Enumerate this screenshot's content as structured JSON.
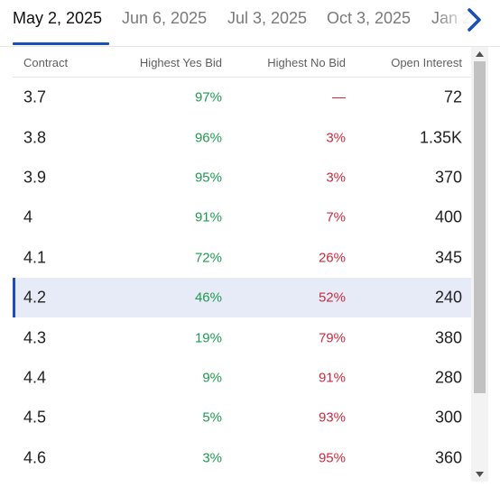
{
  "tabs": [
    {
      "label": "May 2, 2025",
      "active": true
    },
    {
      "label": "Jun 6, 2025",
      "active": false
    },
    {
      "label": "Jul 3, 2025",
      "active": false
    },
    {
      "label": "Oct 3, 2025",
      "active": false
    },
    {
      "label": "Jan 2",
      "active": false
    }
  ],
  "table": {
    "headers": {
      "contract": "Contract",
      "yes_bid": "Highest Yes Bid",
      "no_bid": "Highest No Bid",
      "open_interest": "Open Interest"
    },
    "rows": [
      {
        "contract": "3.7",
        "yes": "97%",
        "no": "—",
        "oi": "72"
      },
      {
        "contract": "3.8",
        "yes": "96%",
        "no": "3%",
        "oi": "1.35K"
      },
      {
        "contract": "3.9",
        "yes": "95%",
        "no": "3%",
        "oi": "370"
      },
      {
        "contract": "4",
        "yes": "91%",
        "no": "7%",
        "oi": "400"
      },
      {
        "contract": "4.1",
        "yes": "72%",
        "no": "26%",
        "oi": "345"
      },
      {
        "contract": "4.2",
        "yes": "46%",
        "no": "52%",
        "oi": "240"
      },
      {
        "contract": "4.3",
        "yes": "19%",
        "no": "79%",
        "oi": "380"
      },
      {
        "contract": "4.4",
        "yes": "9%",
        "no": "91%",
        "oi": "280"
      },
      {
        "contract": "4.5",
        "yes": "5%",
        "no": "93%",
        "oi": "300"
      },
      {
        "contract": "4.6",
        "yes": "3%",
        "no": "95%",
        "oi": "360"
      }
    ],
    "selected_contract": "4.2"
  },
  "colors": {
    "accent": "#1a4fb5",
    "yes": "#1e9b4f",
    "no": "#cf2a3c",
    "selected_row_bg": "#e6ebf7"
  },
  "icons": {
    "next": "chevron-right-icon",
    "scroll_up": "triangle-up-icon",
    "scroll_down": "triangle-down-icon"
  }
}
